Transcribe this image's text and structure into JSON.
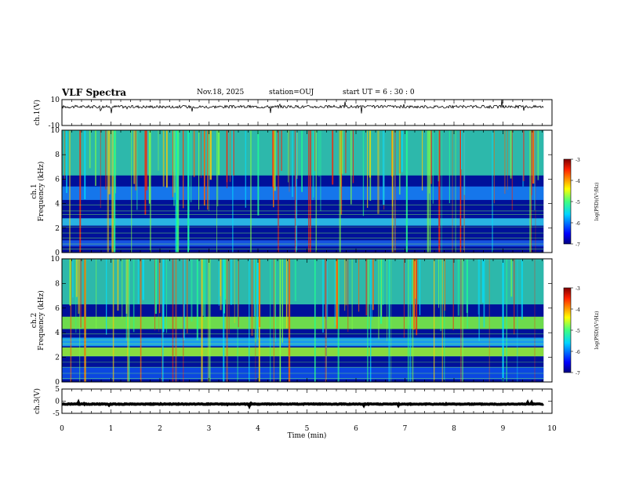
{
  "header": {
    "title": "VLF Spectra",
    "date": "Nov.18, 2025",
    "station": "station=OUJ",
    "start_ut": "start  UT =  6 : 30 : 0"
  },
  "chart_data": [
    {
      "type": "line",
      "panel": "ch1-waveform",
      "ylabel": "ch.1(V)",
      "ylim": [
        -10,
        10
      ],
      "yticks": [
        "10",
        "-10"
      ],
      "xlim": [
        0,
        10
      ],
      "baseline_value": 4.5
    },
    {
      "type": "heatmap",
      "panel": "ch1-spectrogram",
      "ylabel_top": "ch.1",
      "ylabel": "Frequency (kHz)",
      "ylim": [
        0,
        10
      ],
      "yticks": [
        "0",
        "2",
        "4",
        "6",
        "8",
        "10"
      ],
      "xlim": [
        0,
        10
      ],
      "data_extent_min": 9.83,
      "colorbar": {
        "label": "log(PSD)(V²/Hz)",
        "range": [
          -7,
          -3
        ],
        "ticks": [
          "-3",
          "-4",
          "-5",
          "-6",
          "-7"
        ]
      }
    },
    {
      "type": "heatmap",
      "panel": "ch2-spectrogram",
      "ylabel_top": "ch.2",
      "ylabel": "Frequency (kHz)",
      "ylim": [
        0,
        10
      ],
      "yticks": [
        "0",
        "2",
        "4",
        "6",
        "8",
        "10"
      ],
      "xlim": [
        0,
        10
      ],
      "data_extent_min": 9.83,
      "colorbar": {
        "label": "log(PSD)(V²/Hz)",
        "range": [
          -7,
          -3
        ],
        "ticks": [
          "-3",
          "-4",
          "-5",
          "-6",
          "-7"
        ]
      }
    },
    {
      "type": "line",
      "panel": "ch3-waveform",
      "ylabel": "ch.3(V)",
      "ylim": [
        -5,
        5
      ],
      "yticks": [
        "5",
        "0",
        "-5"
      ],
      "xlim": [
        0,
        10
      ],
      "baseline_value": -1.2
    }
  ],
  "xaxis": {
    "label": "Time (min)",
    "ticks": [
      "0",
      "1",
      "2",
      "3",
      "4",
      "5",
      "6",
      "7",
      "8",
      "9",
      "10"
    ]
  }
}
